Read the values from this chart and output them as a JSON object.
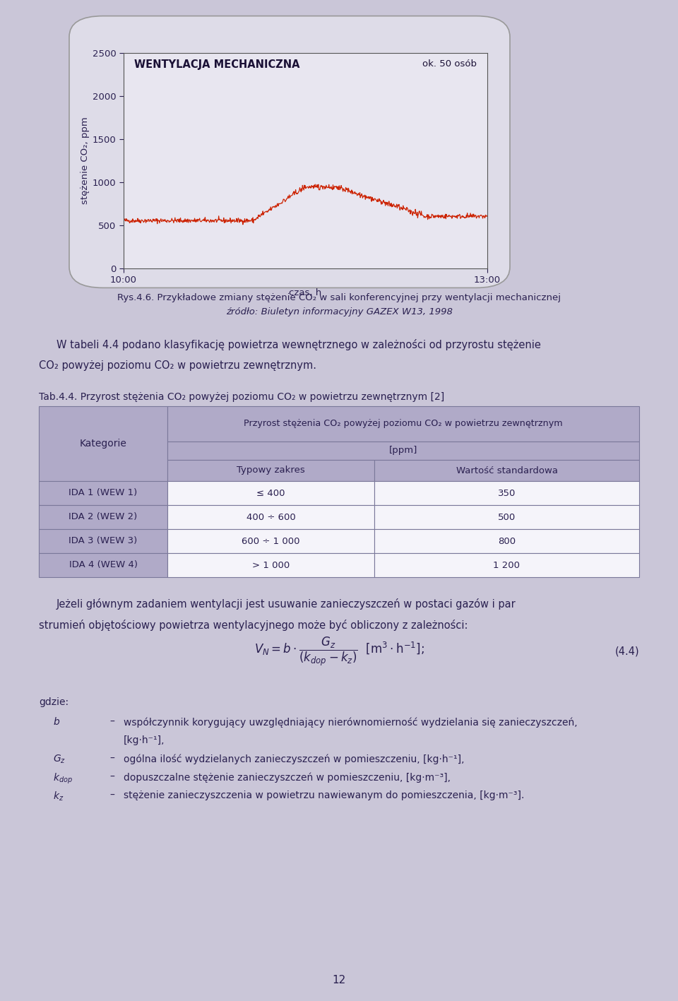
{
  "page_bg": "#cac6d8",
  "page_width": 9.6,
  "page_height": 14.17,
  "top_bar_color": "#5a4a7a",
  "chart": {
    "title_text": "WENTYLACJA MECHANICZNA",
    "subtitle_text": "ok. 50 osób",
    "ylabel": "stężenie CO₂, ppm",
    "xlabel": "czas, h",
    "xlim_labels": [
      "10:00",
      "13:00"
    ],
    "ylim": [
      0,
      2500
    ],
    "yticks": [
      0,
      500,
      1000,
      1500,
      2000,
      2500
    ],
    "line_color": "#cc2200",
    "plot_bg": "#e8e6f0"
  },
  "caption_line1": "Rys.4.6. Przykładowe zmiany stężenie CO₂ w sali konferencyjnej przy wentylacji mechanicznej",
  "caption_line2": "źródło: Biuletyn informacyjny GAZEX W13, 1998",
  "para1_line1": "W tabeli 4.4 podano klasyfikację powietrza wewnętrznego w zależności od przyrostu stężenie",
  "para1_line2": "CO₂ powyżej poziomu CO₂ w powietrzu zewnętrznym.",
  "table_title": "Tab.4.4. Przyrost stężenia CO₂ powyżej poziomu CO₂ w powietrzu zewnętrznym [2]",
  "table_header1a": "Przyrost stężenia CO₂ powyżej poziomu CO₂ w powietrzu zewnętrznym",
  "table_header1b": "[ppm]",
  "table_col1": "Kategorie",
  "table_col2": "Typowy zakres",
  "table_col3": "Wartość standardowa",
  "table_rows": [
    [
      "IDA 1 (WEW 1)",
      "≤ 400",
      "350"
    ],
    [
      "IDA 2 (WEW 2)",
      "400 ÷ 600",
      "500"
    ],
    [
      "IDA 3 (WEW 3)",
      "600 ÷ 1 000",
      "800"
    ],
    [
      "IDA 4 (WEW 4)",
      "> 1 000",
      "1 200"
    ]
  ],
  "table_header_bg": "#b0aac8",
  "table_row_bg": "#f5f4fa",
  "table_category_bg": "#b0aac8",
  "table_border": "#7a789a",
  "para2_line1": "Jeżeli głównym zadaniem wentylacji jest usuwanie zanieczyszczeń w postaci gazów i par",
  "para2_line2": "strumień objętościowy powietrza wentylacyjnego może być obliczony z zależności:",
  "formula_number": "(4.4)",
  "gdzie_label": "gdzie:",
  "legend_rows": [
    {
      "label": "b",
      "dash": "–",
      "desc": "współczynnik korygujący uwzględniający nierównomierność wydzielania się zanieczyszczeń,"
    },
    {
      "label": "",
      "dash": "",
      "desc": "[kg·h⁻¹],"
    },
    {
      "label": "G_z",
      "dash": "–",
      "desc": "ogólna ilość wydzielanych zanieczyszczeń w pomieszczeniu, [kg·h⁻¹],"
    },
    {
      "label": "k_dop",
      "dash": "–",
      "desc": "dopuszczalne stężenie zanieczyszczeń w pomieszczeniu, [kg·m⁻³],"
    },
    {
      "label": "k_z",
      "dash": "–",
      "desc": "stężenie zanieczyszczenia w powietrzu nawiewanym do pomieszczenia, [kg·m⁻³]."
    }
  ],
  "page_number": "12",
  "text_color": "#2a2050",
  "text_color_dark": "#1a1035"
}
